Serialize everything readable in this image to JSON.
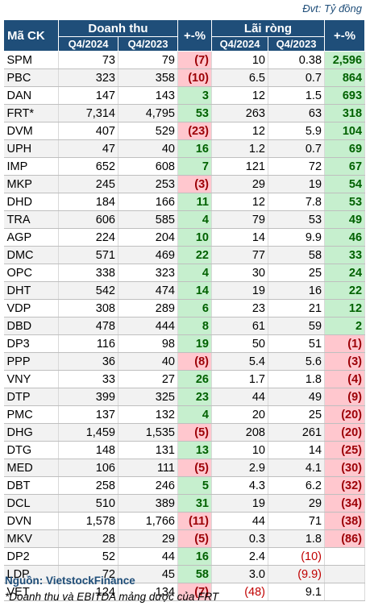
{
  "unit_label": "Đvt: Tỷ đồng",
  "headers": {
    "code": "Mã CK",
    "revenue": "Doanh thu",
    "revenue_change": "+-%",
    "profit": "Lãi ròng",
    "profit_change": "+-%",
    "q_curr_rev": "Q4/2024",
    "q_prev_rev": "Q4/2023",
    "q_curr_profit": "Q4/2024",
    "q_prev_profit": "Q4/2023"
  },
  "rows": [
    {
      "code": "SPM",
      "rev_curr": "73",
      "rev_prev": "79",
      "rev_chg": "(7)",
      "rev_sign": "neg",
      "np_curr": "10",
      "np_prev": "0.38",
      "np_chg": "2,596",
      "np_sign": "pos"
    },
    {
      "code": "PBC",
      "rev_curr": "323",
      "rev_prev": "358",
      "rev_chg": "(10)",
      "rev_sign": "neg",
      "np_curr": "6.5",
      "np_prev": "0.7",
      "np_chg": "864",
      "np_sign": "pos"
    },
    {
      "code": "DAN",
      "rev_curr": "147",
      "rev_prev": "143",
      "rev_chg": "3",
      "rev_sign": "pos",
      "np_curr": "12",
      "np_prev": "1.5",
      "np_chg": "693",
      "np_sign": "pos"
    },
    {
      "code": "FRT*",
      "rev_curr": "7,314",
      "rev_prev": "4,795",
      "rev_chg": "53",
      "rev_sign": "pos",
      "np_curr": "263",
      "np_prev": "63",
      "np_chg": "318",
      "np_sign": "pos"
    },
    {
      "code": "DVM",
      "rev_curr": "407",
      "rev_prev": "529",
      "rev_chg": "(23)",
      "rev_sign": "neg",
      "np_curr": "12",
      "np_prev": "5.9",
      "np_chg": "104",
      "np_sign": "pos"
    },
    {
      "code": "UPH",
      "rev_curr": "47",
      "rev_prev": "40",
      "rev_chg": "16",
      "rev_sign": "pos",
      "np_curr": "1.2",
      "np_prev": "0.7",
      "np_chg": "69",
      "np_sign": "pos"
    },
    {
      "code": "IMP",
      "rev_curr": "652",
      "rev_prev": "608",
      "rev_chg": "7",
      "rev_sign": "pos",
      "np_curr": "121",
      "np_prev": "72",
      "np_chg": "67",
      "np_sign": "pos"
    },
    {
      "code": "MKP",
      "rev_curr": "245",
      "rev_prev": "253",
      "rev_chg": "(3)",
      "rev_sign": "neg",
      "np_curr": "29",
      "np_prev": "19",
      "np_chg": "54",
      "np_sign": "pos"
    },
    {
      "code": "DHD",
      "rev_curr": "184",
      "rev_prev": "166",
      "rev_chg": "11",
      "rev_sign": "pos",
      "np_curr": "12",
      "np_prev": "7.8",
      "np_chg": "53",
      "np_sign": "pos"
    },
    {
      "code": "TRA",
      "rev_curr": "606",
      "rev_prev": "585",
      "rev_chg": "4",
      "rev_sign": "pos",
      "np_curr": "79",
      "np_prev": "53",
      "np_chg": "49",
      "np_sign": "pos"
    },
    {
      "code": "AGP",
      "rev_curr": "224",
      "rev_prev": "204",
      "rev_chg": "10",
      "rev_sign": "pos",
      "np_curr": "14",
      "np_prev": "9.9",
      "np_chg": "46",
      "np_sign": "pos"
    },
    {
      "code": "DMC",
      "rev_curr": "571",
      "rev_prev": "469",
      "rev_chg": "22",
      "rev_sign": "pos",
      "np_curr": "77",
      "np_prev": "58",
      "np_chg": "33",
      "np_sign": "pos"
    },
    {
      "code": "OPC",
      "rev_curr": "338",
      "rev_prev": "323",
      "rev_chg": "4",
      "rev_sign": "pos",
      "np_curr": "30",
      "np_prev": "25",
      "np_chg": "24",
      "np_sign": "pos"
    },
    {
      "code": "DHT",
      "rev_curr": "542",
      "rev_prev": "474",
      "rev_chg": "14",
      "rev_sign": "pos",
      "np_curr": "19",
      "np_prev": "16",
      "np_chg": "22",
      "np_sign": "pos"
    },
    {
      "code": "VDP",
      "rev_curr": "308",
      "rev_prev": "289",
      "rev_chg": "6",
      "rev_sign": "pos",
      "np_curr": "23",
      "np_prev": "21",
      "np_chg": "12",
      "np_sign": "pos"
    },
    {
      "code": "DBD",
      "rev_curr": "478",
      "rev_prev": "444",
      "rev_chg": "8",
      "rev_sign": "pos",
      "np_curr": "61",
      "np_prev": "59",
      "np_chg": "2",
      "np_sign": "pos"
    },
    {
      "code": "DP3",
      "rev_curr": "116",
      "rev_prev": "98",
      "rev_chg": "19",
      "rev_sign": "pos",
      "np_curr": "50",
      "np_prev": "51",
      "np_chg": "(1)",
      "np_sign": "neg"
    },
    {
      "code": "PPP",
      "rev_curr": "36",
      "rev_prev": "40",
      "rev_chg": "(8)",
      "rev_sign": "neg",
      "np_curr": "5.4",
      "np_prev": "5.6",
      "np_chg": "(3)",
      "np_sign": "neg"
    },
    {
      "code": "VNY",
      "rev_curr": "33",
      "rev_prev": "27",
      "rev_chg": "26",
      "rev_sign": "pos",
      "np_curr": "1.7",
      "np_prev": "1.8",
      "np_chg": "(4)",
      "np_sign": "neg"
    },
    {
      "code": "DTP",
      "rev_curr": "399",
      "rev_prev": "325",
      "rev_chg": "23",
      "rev_sign": "pos",
      "np_curr": "44",
      "np_prev": "49",
      "np_chg": "(9)",
      "np_sign": "neg"
    },
    {
      "code": "PMC",
      "rev_curr": "137",
      "rev_prev": "132",
      "rev_chg": "4",
      "rev_sign": "pos",
      "np_curr": "20",
      "np_prev": "25",
      "np_chg": "(20)",
      "np_sign": "neg"
    },
    {
      "code": "DHG",
      "rev_curr": "1,459",
      "rev_prev": "1,535",
      "rev_chg": "(5)",
      "rev_sign": "neg",
      "np_curr": "208",
      "np_prev": "261",
      "np_chg": "(20)",
      "np_sign": "neg"
    },
    {
      "code": "DTG",
      "rev_curr": "148",
      "rev_prev": "131",
      "rev_chg": "13",
      "rev_sign": "pos",
      "np_curr": "10",
      "np_prev": "14",
      "np_chg": "(25)",
      "np_sign": "neg"
    },
    {
      "code": "MED",
      "rev_curr": "106",
      "rev_prev": "111",
      "rev_chg": "(5)",
      "rev_sign": "neg",
      "np_curr": "2.9",
      "np_prev": "4.1",
      "np_chg": "(30)",
      "np_sign": "neg"
    },
    {
      "code": "DBT",
      "rev_curr": "258",
      "rev_prev": "246",
      "rev_chg": "5",
      "rev_sign": "pos",
      "np_curr": "4.3",
      "np_prev": "6.2",
      "np_chg": "(32)",
      "np_sign": "neg"
    },
    {
      "code": "DCL",
      "rev_curr": "510",
      "rev_prev": "389",
      "rev_chg": "31",
      "rev_sign": "pos",
      "np_curr": "19",
      "np_prev": "29",
      "np_chg": "(34)",
      "np_sign": "neg"
    },
    {
      "code": "DVN",
      "rev_curr": "1,578",
      "rev_prev": "1,766",
      "rev_chg": "(11)",
      "rev_sign": "neg",
      "np_curr": "44",
      "np_prev": "71",
      "np_chg": "(38)",
      "np_sign": "neg"
    },
    {
      "code": "MKV",
      "rev_curr": "28",
      "rev_prev": "29",
      "rev_chg": "(5)",
      "rev_sign": "neg",
      "np_curr": "0.3",
      "np_prev": "1.8",
      "np_chg": "(86)",
      "np_sign": "neg"
    },
    {
      "code": "DP2",
      "rev_curr": "52",
      "rev_prev": "44",
      "rev_chg": "16",
      "rev_sign": "pos",
      "np_curr": "2.4",
      "np_prev": "(10)",
      "np_prev_red": true,
      "np_chg": "",
      "np_sign": ""
    },
    {
      "code": "LDP",
      "rev_curr": "72",
      "rev_prev": "45",
      "rev_chg": "58",
      "rev_sign": "pos",
      "np_curr": "3.0",
      "np_prev": "(9.9)",
      "np_prev_red": true,
      "np_chg": "",
      "np_sign": ""
    },
    {
      "code": "VET",
      "rev_curr": "124",
      "rev_prev": "134",
      "rev_chg": "(7)",
      "rev_sign": "neg",
      "np_curr": "(48)",
      "np_curr_red": true,
      "np_prev": "9.1",
      "np_chg": "",
      "np_sign": ""
    }
  ],
  "source": "Nguồn: VietstockFinance",
  "note": "*Doanh thu và EBITDA mảng dược của FRT"
}
